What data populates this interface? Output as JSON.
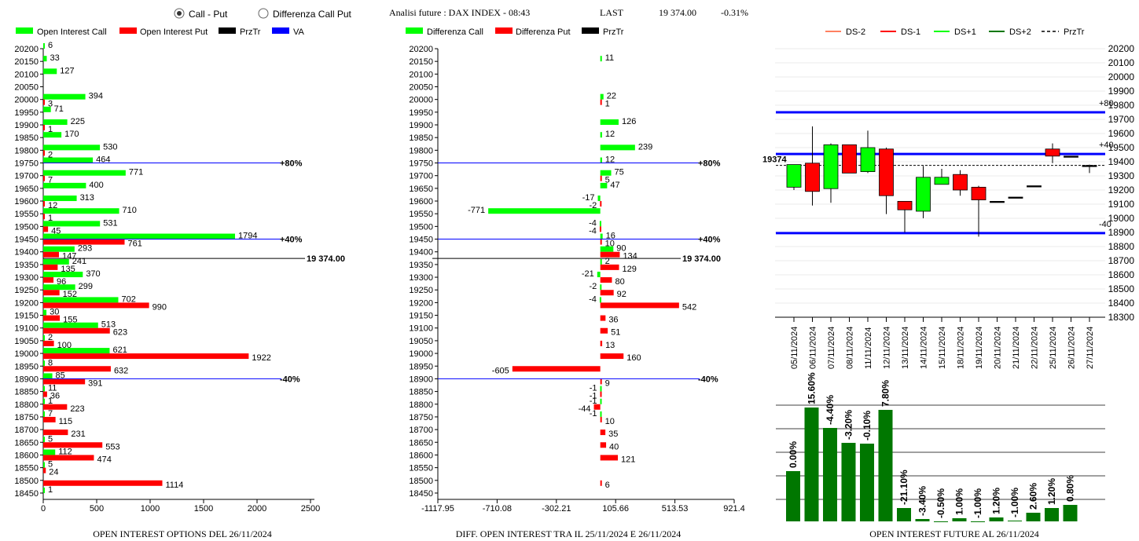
{
  "header": {
    "radio_call_put": "Call - Put",
    "radio_diff": "Differenza Call Put",
    "title": "Analisi future : DAX INDEX - 08:43",
    "last_label": "LAST",
    "last_value": "19 374.00",
    "change": "-0.31%"
  },
  "colors": {
    "call": "#00ff00",
    "put": "#ff0000",
    "prztr": "#000000",
    "va": "#0000ff",
    "dark_green": "#007700"
  },
  "legend1": [
    "Open Interest Call",
    "Open Interest Put",
    "PrzTr",
    "VA"
  ],
  "legend2": [
    "Differenza Call",
    "Differenza Put",
    "PrzTr"
  ],
  "legend3": [
    "DS-2",
    "DS-1",
    "DS+1",
    "DS+2",
    "PrzTr"
  ],
  "footers": {
    "left": "OPEN INTEREST OPTIONS DEL 26/11/2024",
    "mid": "DIFF. OPEN INTEREST TRA IL 25/11/2024 E 26/11/2024",
    "right": "OPEN INTEREST FUTURE AL 26/11/2024"
  },
  "chart_data": [
    {
      "type": "bar",
      "orientation": "horizontal",
      "strikes": [
        20200,
        20150,
        20100,
        20050,
        20000,
        19950,
        19900,
        19850,
        19800,
        19750,
        19700,
        19650,
        19600,
        19550,
        19500,
        19450,
        19400,
        19350,
        19300,
        19250,
        19200,
        19150,
        19100,
        19050,
        19000,
        18950,
        18900,
        18850,
        18800,
        18750,
        18700,
        18650,
        18600,
        18550,
        18500,
        18450
      ],
      "series": [
        {
          "name": "Open Interest Call",
          "values": [
            6,
            33,
            127,
            null,
            394,
            71,
            225,
            170,
            530,
            464,
            771,
            400,
            313,
            710,
            531,
            1794,
            293,
            241,
            370,
            299,
            702,
            30,
            513,
            2,
            621,
            8,
            85,
            11,
            1,
            7,
            null,
            5,
            112,
            5,
            null,
            1
          ]
        },
        {
          "name": "Open Interest Put",
          "values": [
            null,
            null,
            null,
            null,
            3,
            null,
            1,
            null,
            2,
            null,
            7,
            null,
            12,
            1,
            45,
            761,
            147,
            135,
            96,
            152,
            990,
            155,
            623,
            100,
            1922,
            632,
            391,
            36,
            223,
            115,
            231,
            553,
            474,
            24,
            1114,
            null
          ]
        }
      ],
      "xticks": [
        0,
        500,
        1000,
        1500,
        2000,
        2500
      ],
      "xlim": [
        0,
        2600
      ],
      "ylim": [
        18450,
        20200
      ],
      "hlines": [
        {
          "y": 19750,
          "label": "+80%"
        },
        {
          "y": 19450,
          "label": "+40%"
        },
        {
          "y": 18900,
          "label": "-40%"
        },
        {
          "y": 19374,
          "label": "19 374.00"
        }
      ]
    },
    {
      "type": "bar",
      "orientation": "horizontal",
      "strikes": [
        20200,
        20150,
        20100,
        20050,
        20000,
        19950,
        19900,
        19850,
        19800,
        19750,
        19700,
        19650,
        19600,
        19550,
        19500,
        19450,
        19400,
        19350,
        19300,
        19250,
        19200,
        19150,
        19100,
        19050,
        19000,
        18950,
        18900,
        18850,
        18800,
        18750,
        18700,
        18650,
        18600,
        18550,
        18500,
        18450
      ],
      "series": [
        {
          "name": "Differenza Call",
          "values": [
            null,
            11,
            null,
            null,
            22,
            null,
            126,
            12,
            239,
            12,
            75,
            47,
            -17,
            -771,
            -4,
            16,
            90,
            2,
            -21,
            -2,
            -4,
            null,
            null,
            null,
            null,
            null,
            null,
            -1,
            -1,
            -1,
            null,
            null,
            null,
            null,
            null,
            null
          ]
        },
        {
          "name": "Differenza Put",
          "values": [
            null,
            null,
            null,
            null,
            1,
            null,
            null,
            null,
            null,
            null,
            5,
            null,
            -2,
            null,
            -4,
            10,
            134,
            129,
            80,
            92,
            542,
            36,
            51,
            13,
            160,
            -605,
            9,
            -1,
            -44,
            10,
            35,
            40,
            121,
            null,
            6,
            null
          ]
        }
      ],
      "xticks": [
        "-1117.95",
        "-710.08",
        "-302.21",
        "105.66",
        "513.53",
        "921.4"
      ],
      "xlim": [
        -1117.95,
        921.4
      ],
      "ylim": [
        18450,
        20200
      ],
      "hlines": [
        {
          "y": 19750,
          "label": "+80%"
        },
        {
          "y": 19450,
          "label": "+40%"
        },
        {
          "y": 18900,
          "label": "-40%"
        },
        {
          "y": 19374,
          "label": "19 374.00"
        }
      ]
    },
    {
      "type": "candlestick",
      "dates": [
        "05/11/2024",
        "06/11/2024",
        "07/11/2024",
        "08/11/2024",
        "11/11/2024",
        "12/11/2024",
        "13/11/2024",
        "14/11/2024",
        "15/11/2024",
        "18/11/2024",
        "19/11/2024",
        "20/11/2024",
        "21/11/2024",
        "22/11/2024",
        "25/11/2024",
        "26/11/2024",
        "27/11/2024"
      ],
      "candles": [
        {
          "open": 19220,
          "close": 19380,
          "high": 19380,
          "low": 19200
        },
        {
          "open": 19390,
          "close": 19190,
          "high": 19650,
          "low": 19090
        },
        {
          "open": 19210,
          "close": 19520,
          "high": 19530,
          "low": 19110
        },
        {
          "open": 19520,
          "close": 19320,
          "high": 19520,
          "low": 19320
        },
        {
          "open": 19330,
          "close": 19500,
          "high": 19620,
          "low": 19320
        },
        {
          "open": 19490,
          "close": 19160,
          "high": 19500,
          "low": 19030
        },
        {
          "open": 19120,
          "close": 19060,
          "high": 19120,
          "low": 18900
        },
        {
          "open": 19050,
          "close": 19290,
          "high": 19370,
          "low": 19000
        },
        {
          "open": 19240,
          "close": 19290,
          "high": 19350,
          "low": 19240
        },
        {
          "open": 19310,
          "close": 19200,
          "high": 19340,
          "low": 19160
        },
        {
          "open": 19220,
          "close": 19130,
          "high": 19230,
          "low": 18870
        },
        {
          "open": 19120,
          "close": 19120,
          "high": 19120,
          "low": 19120
        },
        {
          "open": 19150,
          "close": 19150,
          "high": 19150,
          "low": 19150
        },
        {
          "open": 19230,
          "close": 19230,
          "high": 19230,
          "low": 19230
        },
        {
          "open": 19490,
          "close": 19440,
          "high": 19530,
          "low": 19390
        },
        {
          "open": 19440,
          "close": 19440,
          "high": 19440,
          "low": 19440
        },
        {
          "open": 19374,
          "close": 19374,
          "high": 19380,
          "low": 19320
        }
      ],
      "yticks": [
        18300,
        18400,
        18500,
        18600,
        18700,
        18800,
        18900,
        19000,
        19100,
        19200,
        19300,
        19400,
        19500,
        19600,
        19700,
        19800,
        19900,
        20000,
        20100,
        20200
      ],
      "ylim": [
        18300,
        20200
      ],
      "hlines": [
        {
          "y": 19750,
          "label": "+80"
        },
        {
          "y": 19455,
          "label": "+40"
        },
        {
          "y": 18895,
          "label": "-40"
        },
        {
          "y": 19374,
          "label": "19374"
        }
      ]
    },
    {
      "type": "bar",
      "categories": [
        "05/11/2024",
        "06/11/2024",
        "07/11/2024",
        "08/11/2024",
        "11/11/2024",
        "12/11/2024",
        "13/11/2024",
        "14/11/2024",
        "15/11/2024",
        "18/11/2024",
        "19/11/2024",
        "20/11/2024",
        "21/11/2024",
        "22/11/2024",
        "25/11/2024",
        "26/11/2024"
      ],
      "labels": [
        "0.00%",
        "15.60%",
        "-4.40%",
        "-3.20%",
        "-0.10%",
        "7.80%",
        "-21.10%",
        "-3.40%",
        "-0.50%",
        "1.00%",
        "-1.00%",
        "1.20%",
        "-1.00%",
        "2.60%",
        "1.20%",
        "0.80%"
      ],
      "values": [
        64,
        145,
        119,
        100,
        99,
        142,
        17,
        3,
        0,
        4,
        0,
        5,
        1,
        11,
        17,
        21
      ]
    }
  ]
}
